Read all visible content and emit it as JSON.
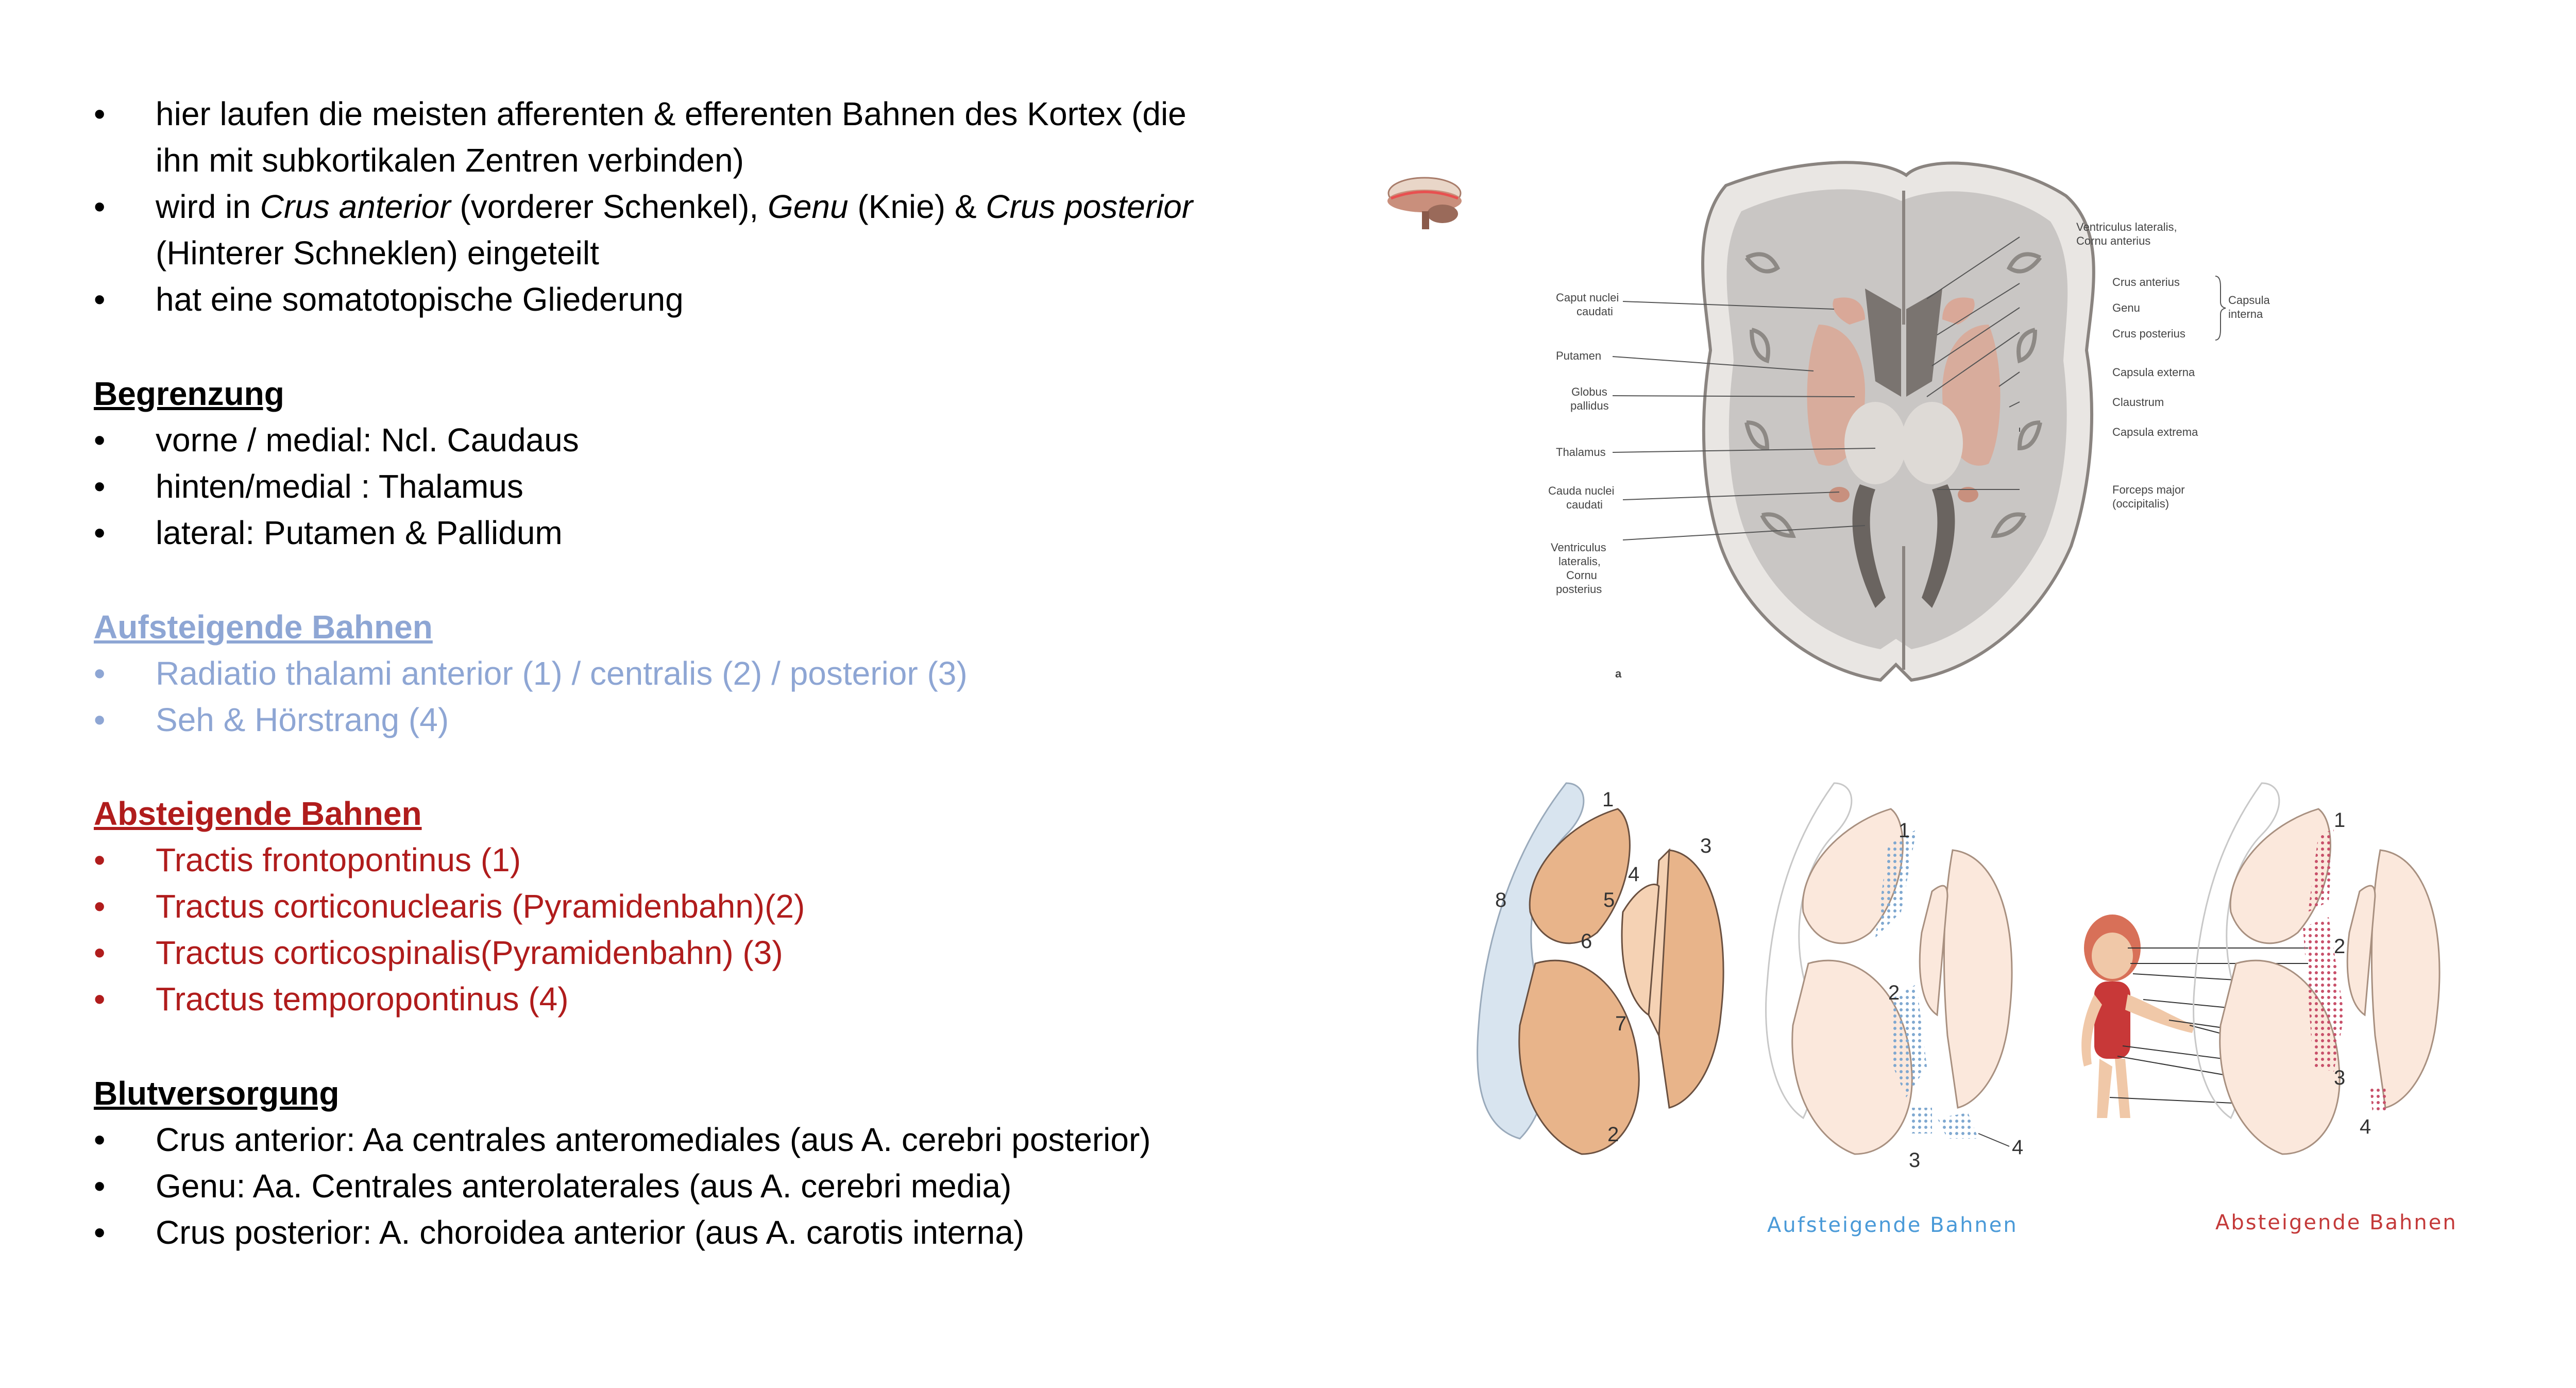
{
  "intro": [
    "hier laufen die meisten afferenten & efferenten Bahnen des Kortex (die",
    "ihn mit  subkortikalen Zentren verbinden)",
    "(Hinterer Schneklen) eingeteilt",
    "hat eine somatotopische Gliederung"
  ],
  "intro_italic": {
    "pre": "wird in ",
    "crus_anterior": "Crus anterior",
    "mid1": " (vorderer Schenkel), ",
    "genu": "Genu",
    "mid2": " (Knie) & ",
    "crus_posterior": "Crus posterior"
  },
  "bullet_char": "•",
  "begrenzung": {
    "title": "Begrenzung",
    "items": [
      "vorne / medial: Ncl. Caudaus",
      "hinten/medial : Thalamus",
      "lateral: Putamen & Pallidum"
    ]
  },
  "aufsteigend": {
    "title": "Aufsteigende Bahnen",
    "items": [
      "Radiatio thalami anterior (1) / centralis (2) / posterior (3)",
      "Seh & Hörstrang (4)"
    ],
    "color": "#8ea6d4"
  },
  "absteigend": {
    "title": "Absteigende Bahnen",
    "items": [
      "Tractis frontopontinus (1)",
      "Tractus corticonuclearis (Pyramidenbahn)(2)",
      "Tractus corticospinalis(Pyramidenbahn) (3)",
      "Tractus temporopontinus (4)"
    ],
    "color": "#b01c1c"
  },
  "blut": {
    "title": "Blutversorgung",
    "items": [
      "Crus anterior: Aa centrales anteromediales (aus A. cerebri posterior)",
      "Genu: Aa. Centrales anterolaterales (aus A. cerebri media)",
      "Crus posterior: A. choroidea anterior (aus A. carotis interna)"
    ]
  },
  "brain_labels": {
    "caput": [
      "Caput nuclei",
      "caudati"
    ],
    "putamen": "Putamen",
    "globus": [
      "Globus",
      "pallidus"
    ],
    "thalamus": "Thalamus",
    "cauda": [
      "Cauda nuclei",
      "caudati"
    ],
    "ventr_post": [
      "Ventriculus",
      "lateralis,",
      "Cornu",
      "posterius"
    ],
    "ventr_ant": [
      "Ventriculus lateralis,",
      "Cornu anterius"
    ],
    "crus_ant": "Crus anterius",
    "genu": "Genu",
    "crus_post": "Crus posterius",
    "capsula_interna": [
      "Capsula",
      "interna"
    ],
    "caps_ext": "Capsula externa",
    "claustrum": "Claustrum",
    "caps_extrema": "Capsula extrema",
    "forceps": [
      "Forceps major",
      "(occipitalis)"
    ],
    "fig_letter": "a"
  },
  "diagram_numbers": {
    "left": [
      "1",
      "2",
      "3",
      "4",
      "5",
      "6",
      "7",
      "8"
    ],
    "middle": [
      "1",
      "2",
      "3",
      "4"
    ],
    "right": [
      "1",
      "2",
      "3",
      "4"
    ]
  },
  "captions": {
    "aufsteigend": "Aufsteigende Bahnen",
    "absteigend": "Absteigende Bahnen"
  },
  "colors": {
    "orange": "#e8b48a",
    "light": "#fbe8dc",
    "blue_dots": "#7fa8d0",
    "red_dots": "#c8506a",
    "caption_blue": "#4a9ad8",
    "caption_red": "#c43a3a"
  }
}
